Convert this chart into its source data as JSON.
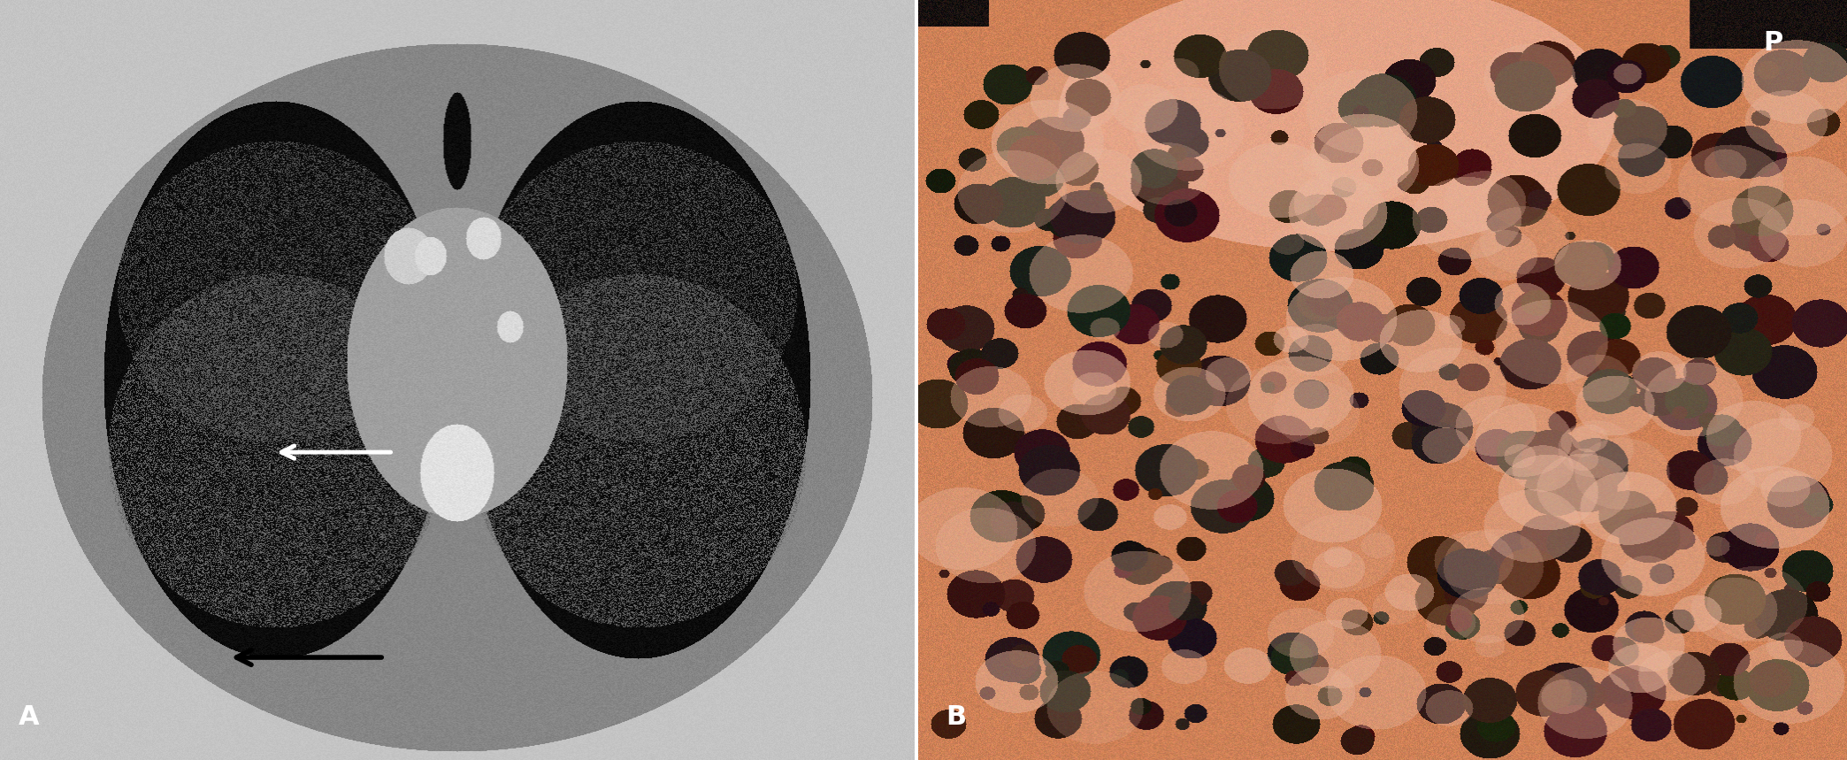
{
  "fig_width": 20.88,
  "fig_height": 8.59,
  "dpi": 100,
  "panel_A_label": "A",
  "panel_B_label": "B",
  "panel_P_label": "P",
  "label_color_white": "white",
  "label_color_black": "black",
  "label_fontsize": 22,
  "label_fontweight": "bold",
  "background_color": "#ffffff"
}
